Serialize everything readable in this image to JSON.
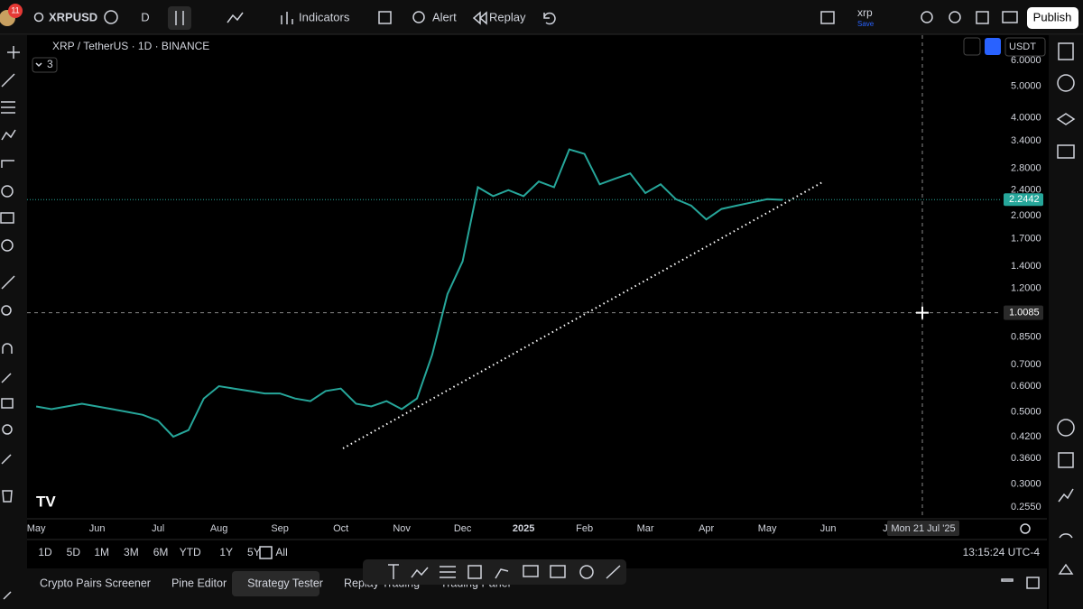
{
  "top_toolbar": {
    "badge": "11",
    "symbol": "XRPUSD",
    "interval": "D",
    "indicators": "Indicators",
    "alert": "Alert",
    "replay": "Replay",
    "layout_name": "xrp",
    "layout_state": "Save",
    "publish": "Publish"
  },
  "chart_data": {
    "type": "line",
    "legend_title": "XRP / TetherUS · 1D · BINANCE",
    "indicator_count": "3",
    "currency": "USDT",
    "color": "#26a69a",
    "log_scale": true,
    "grid": false,
    "x": [
      0,
      0.25,
      0.5,
      0.75,
      1,
      1.25,
      1.5,
      1.75,
      2,
      2.25,
      2.5,
      2.75,
      3,
      3.25,
      3.5,
      3.75,
      4,
      4.25,
      4.5,
      4.75,
      5,
      5.25,
      5.5,
      5.75,
      6,
      6.25,
      6.5,
      6.75,
      7,
      7.25,
      7.5,
      7.75,
      8,
      8.25,
      8.5,
      8.75,
      9,
      9.25,
      9.5,
      9.75,
      10,
      10.25,
      10.5,
      10.75,
      11,
      11.25,
      11.5,
      11.75,
      12,
      12.25
    ],
    "values": [
      0.52,
      0.51,
      0.52,
      0.53,
      0.52,
      0.51,
      0.5,
      0.49,
      0.47,
      0.42,
      0.44,
      0.55,
      0.6,
      0.59,
      0.58,
      0.57,
      0.57,
      0.55,
      0.54,
      0.58,
      0.59,
      0.53,
      0.52,
      0.54,
      0.51,
      0.55,
      0.75,
      1.15,
      1.45,
      2.45,
      2.3,
      2.4,
      2.3,
      2.55,
      2.45,
      3.2,
      3.1,
      2.5,
      2.6,
      2.7,
      2.35,
      2.5,
      2.25,
      2.15,
      1.95,
      2.1,
      2.15,
      2.2,
      2.25,
      2.24
    ],
    "xlim": [
      -0.15,
      15.85
    ],
    "ylim": [
      0.235,
      7.22
    ],
    "xticks": [
      {
        "value": 0,
        "label": "May"
      },
      {
        "value": 1,
        "label": "Jun"
      },
      {
        "value": 2,
        "label": "Jul"
      },
      {
        "value": 3,
        "label": "Aug"
      },
      {
        "value": 4,
        "label": "Sep"
      },
      {
        "value": 5,
        "label": "Oct"
      },
      {
        "value": 6,
        "label": "Nov"
      },
      {
        "value": 7,
        "label": "Dec"
      },
      {
        "value": 8,
        "label": "2025"
      },
      {
        "value": 9,
        "label": "Feb"
      },
      {
        "value": 10,
        "label": "Mar"
      },
      {
        "value": 11,
        "label": "Apr"
      },
      {
        "value": 12,
        "label": "May"
      },
      {
        "value": 13,
        "label": "Jun"
      },
      {
        "value": 14,
        "label": "Jul"
      }
    ],
    "yticks": [
      {
        "value": 6,
        "label": "6.0000"
      },
      {
        "value": 5,
        "label": "5.0000"
      },
      {
        "value": 4,
        "label": "4.0000"
      },
      {
        "value": 3.4,
        "label": "3.4000"
      },
      {
        "value": 2.8,
        "label": "2.8000"
      },
      {
        "value": 2.4,
        "label": "2.4000"
      },
      {
        "value": 2,
        "label": "2.0000"
      },
      {
        "value": 1.7,
        "label": "1.7000"
      },
      {
        "value": 1.4,
        "label": "1.4000"
      },
      {
        "value": 1.2,
        "label": "1.2000"
      },
      {
        "value": 0.85,
        "label": "0.8500"
      },
      {
        "value": 0.7,
        "label": "0.7000"
      },
      {
        "value": 0.6,
        "label": "0.6000"
      },
      {
        "value": 0.5,
        "label": "0.5000"
      },
      {
        "value": 0.42,
        "label": "0.4200"
      },
      {
        "value": 0.36,
        "label": "0.3600"
      },
      {
        "value": 0.3,
        "label": "0.3000"
      },
      {
        "value": 0.255,
        "label": "0.2550"
      }
    ],
    "last_price": 2.2442,
    "crosshair_price": 1.0085,
    "crosshair_date": "Mon 21 Jul '25"
  },
  "bottom_bar": {
    "ranges": [
      "1D",
      "5D",
      "1M",
      "3M",
      "6M",
      "YTD",
      "1Y",
      "5Y",
      "All"
    ],
    "clock": "13:15:24 UTC-4"
  },
  "panel_tabs": [
    "Crypto Pairs Screener",
    "Pine Editor",
    "Strategy Tester",
    "Replay Trading",
    "Trading Panel"
  ]
}
